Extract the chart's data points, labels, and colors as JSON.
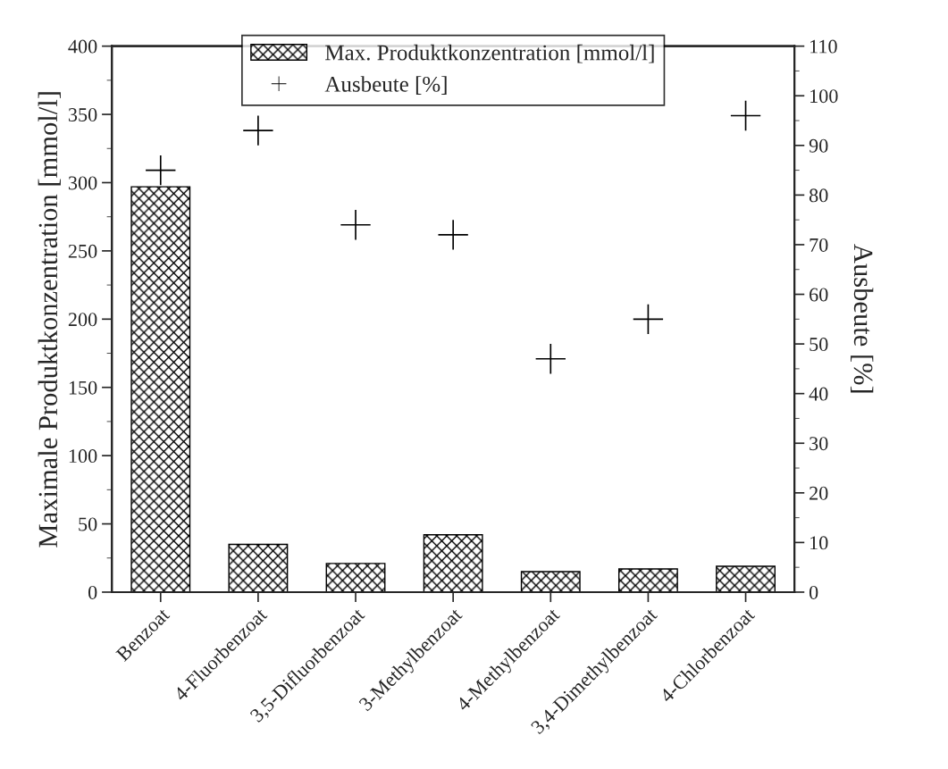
{
  "chart_data": {
    "type": "bar",
    "categories": [
      "Benzoat",
      "4-Fluorbenzoat",
      "3,5-Difluorbenzoat",
      "3-Methylbenzoat",
      "4-Methylbenzoat",
      "3,4-Dimethylbenzoat",
      "4-Chlorbenzoat"
    ],
    "series": [
      {
        "name": "Max. Produktkonzentration [mmol/l]",
        "color": "#000000",
        "values": [
          297,
          35,
          21,
          42,
          15,
          17,
          19
        ]
      },
      {
        "name": "Ausbeute [%]",
        "type": "scatter",
        "axis": "y2",
        "marker": "cross",
        "color": "#000000",
        "values": [
          85,
          93,
          74,
          72,
          47,
          55,
          96
        ]
      }
    ],
    "ylabel": "Maximale Produktkonzentration [mmol/l]",
    "y2label": "Ausbeute [%]",
    "ylim": [
      0,
      400
    ],
    "yticks": [
      0,
      50,
      100,
      150,
      200,
      250,
      300,
      350,
      400
    ],
    "y2lim": [
      0,
      110
    ],
    "y2ticks": [
      0,
      10,
      20,
      30,
      40,
      50,
      60,
      70,
      80,
      90,
      100,
      110
    ],
    "legend": "top",
    "grid": false
  }
}
